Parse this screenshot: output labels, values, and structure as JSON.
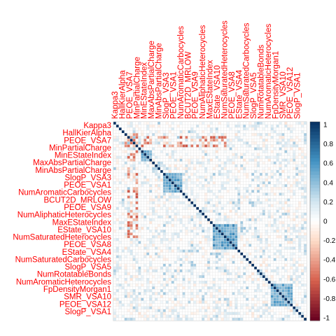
{
  "chart_data": {
    "type": "heatmap",
    "method": "correlation matrix (square cells)",
    "variables": [
      "Kappa3",
      "HallKierAlpha",
      "PEOE_VSA7",
      "MinPartialCharge",
      "MinEStateIndex",
      "MaxAbsPartialCharge",
      "MinAbsPartialCharge",
      "SlogP_VSA3",
      "PEOE_VSA1",
      "NumAromaticCarbocycles",
      "BCUT2D_MRLOW",
      "PEOE_VSA9",
      "NumAliphaticHeterocycles",
      "MaxEStateIndex",
      "EState_VSA10",
      "NumSaturatedHeterocycles",
      "PEOE_VSA8",
      "EState_VSA4",
      "NumSaturatedCarbocycles",
      "SlogP_VSA5",
      "NumRotatableBonds",
      "NumAromaticHeterocycles",
      "FpDensityMorgan1",
      "SMR_VSA10",
      "PEOE_VSA12",
      "SlogP_VSA1"
    ],
    "visible_row_labels": [
      "Kappa3",
      "PEOE_VSA7",
      "MinEStateIndex",
      "MinAbsPartialCharge",
      "SlogP_VSA3",
      "PEOE_VSA1",
      "NumAromaticCarbocycles",
      "PEOE_VSA9",
      "MaxEStateIndex",
      "EState_VSA10",
      "NumSaturatedHeterocycles",
      "EState_VSA4",
      "SlogP_VSA5",
      "NumSaturatedCarbocycles",
      "NumRotatableBonds",
      "NumAromaticHeterocycles",
      "FpDensityMorgan1",
      "SMR_VSA10",
      "PEOE_VSA12",
      "SlogP_VSA1"
    ],
    "visible_col_labels": [
      "Kappa3",
      "HallKierAlpha",
      "MinPartialCharge",
      "MaxAbsPartialCharge",
      "NumAromaticCarbocycles",
      "NumAliphaticHeterocycles",
      "EState_VSA10",
      "PEOE_VSA1",
      "EState_VSA4",
      "SlogP_VSA5",
      "NumRotatableBonds",
      "NumAromaticHeterocycles",
      "SMR_VSA10",
      "SlogP_VSA1"
    ],
    "block_structure": {
      "diagonal": 1,
      "positive_blocks": [
        {
          "rows": [
            10,
            13
          ],
          "cols": [
            10,
            13
          ],
          "value": 0.5
        },
        {
          "rows": [
            18,
            24
          ],
          "cols": [
            18,
            24
          ],
          "value": 0.55
        },
        {
          "rows": [
            36,
            44
          ],
          "cols": [
            36,
            44
          ],
          "value": 0.6
        },
        {
          "rows": [
            57,
            64
          ],
          "cols": [
            57,
            64
          ],
          "value": 0.55
        }
      ],
      "negative_band_rows": [
        5,
        8
      ],
      "negative_band_cols": [
        4,
        40
      ],
      "negative_value": -0.45
    },
    "colorbar": {
      "range": [
        -1,
        1
      ],
      "ticks": [
        "1",
        "0.8",
        "0.6",
        "0.4",
        "0.2",
        "0",
        "-0.2",
        "-0.4",
        "-0.6",
        "-0.8",
        "-1"
      ],
      "colors": {
        "neg": "#67001f",
        "zero": "#ffffff",
        "pos": "#053061"
      }
    },
    "grid": true,
    "label_color": "#ff0000"
  }
}
